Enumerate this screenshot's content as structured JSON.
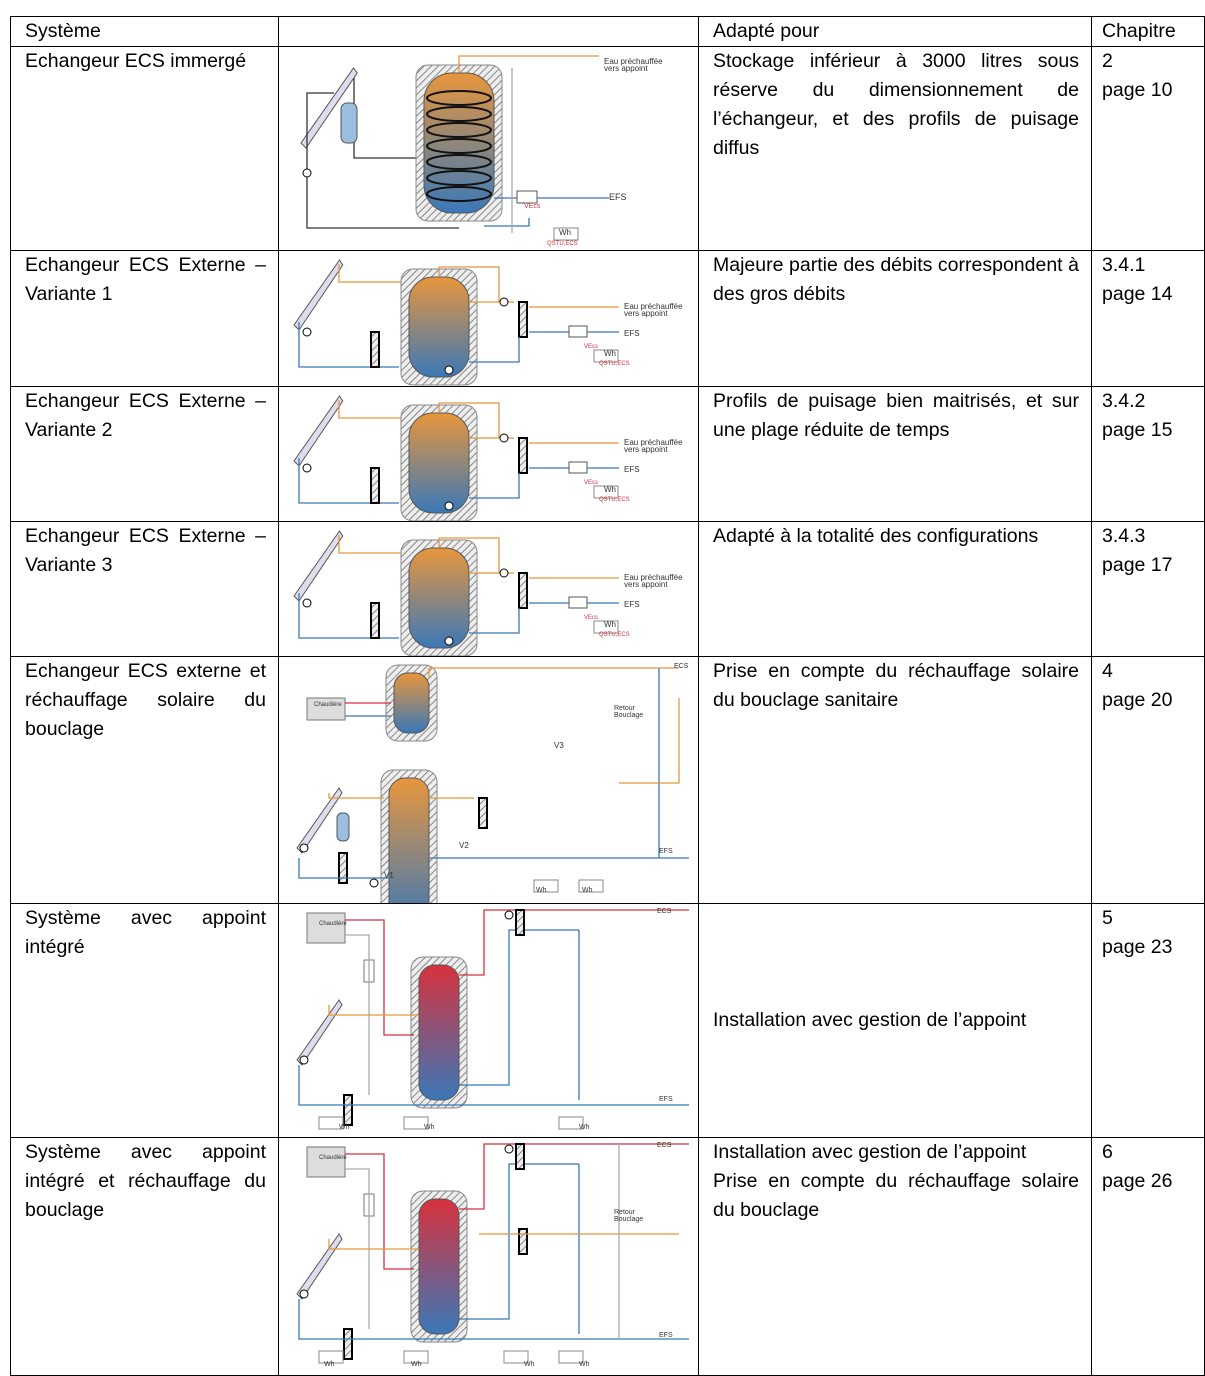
{
  "table": {
    "header": [
      "Système",
      "Adapté pour",
      "Chapitre"
    ],
    "rows": [
      {
        "system": "Echangeur ECS immergé",
        "suited": [
          "Stockage inférieur à 3000 litres sous réserve du dimensionnement de l’échangeur, et des profils de puisage diffus"
        ],
        "chapter": "2",
        "page": "page 10",
        "diagram": [
          "Eau préchauffée",
          "vers appoint",
          "EFS",
          "VEcs",
          "Wh",
          "QSTU,ECS"
        ]
      },
      {
        "system": "Echangeur ECS Externe – Variante 1",
        "suited": [
          "Majeure partie des débits correspondent à des gros débits"
        ],
        "chapter": "3.4.1",
        "page": "page 14",
        "diagram": [
          "Eau préchauffée",
          "vers appoint",
          "EFS",
          "VEcs",
          "Wh",
          "QSTU,ECS"
        ]
      },
      {
        "system": "Echangeur ECS Externe – Variante 2",
        "suited": [
          "Profils de puisage bien maitrisés, et sur une plage réduite de temps"
        ],
        "chapter": "3.4.2",
        "page": "page 15",
        "diagram": [
          "Eau préchauffée",
          "vers appoint",
          "EFS",
          "VEcs",
          "Wh",
          "QSTU,ECS"
        ]
      },
      {
        "system": "Echangeur ECS Externe – Variante 3",
        "suited": [
          "Adapté à la totalité des configurations"
        ],
        "chapter": "3.4.3",
        "page": "page 17",
        "diagram": [
          "Eau préchauffée",
          "vers appoint",
          "EFS",
          "VEcs",
          "Wh",
          "QSTU,ECS"
        ]
      },
      {
        "system": "Echangeur ECS externe et réchauffage solaire du bouclage",
        "suited": [
          "Prise en compte du réchauffage solaire du bouclage sanitaire"
        ],
        "chapter": "4",
        "page": "page 20",
        "diagram": [
          "ECS",
          "Chaudière",
          "Retour",
          "Bouclage",
          "V3",
          "V1",
          "V2",
          "EFS",
          "Wh",
          "Wh"
        ]
      },
      {
        "system": "Système avec appoint intégré",
        "suited": [
          "Installation avec gestion de l’appoint"
        ],
        "chapter": "5",
        "page": "page 23",
        "diagram": [
          "ECS",
          "Chaudière",
          "EFS",
          "Wh",
          "Wh",
          "Wh"
        ]
      },
      {
        "system": "Système avec appoint intégré et réchauffage du bouclage",
        "suited": [
          "Installation avec gestion de l’appoint",
          "Prise en compte du réchauffage solaire du bouclage"
        ],
        "chapter": "6",
        "page": "page 26",
        "diagram": [
          "ECS",
          "Chaudière",
          "Retour",
          "Bouclage",
          "EFS",
          "Wh",
          "Wh",
          "Wh",
          "Wh"
        ]
      }
    ]
  }
}
